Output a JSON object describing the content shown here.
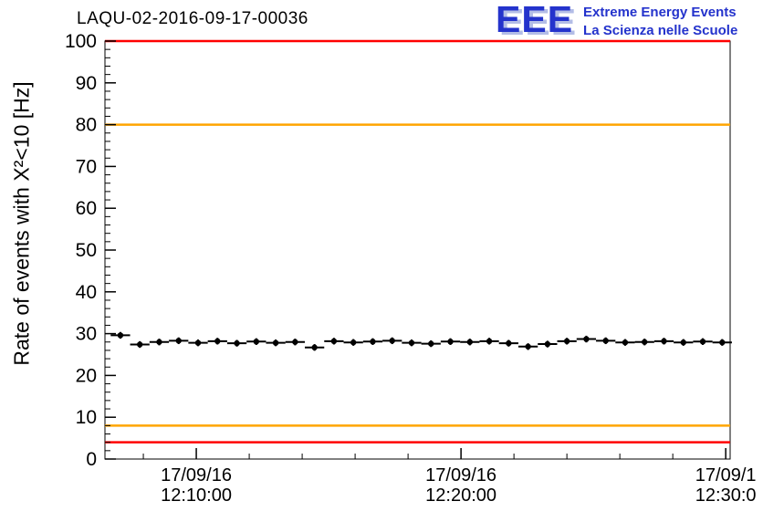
{
  "logo": {
    "text": "EEE",
    "line1": "Extreme Energy Events",
    "line2": "La Scienza nelle Scuole",
    "color": "#2433cc"
  },
  "chart_data": {
    "type": "scatter",
    "title": "LAQU-02-2016-09-17-00036",
    "ylabel": "Rate of events with X²<10 [Hz]",
    "xlabel": "",
    "ylim": [
      0,
      100
    ],
    "xlim": [
      0,
      1417
    ],
    "grid": false,
    "legend": false,
    "yticks": [
      0,
      10,
      20,
      30,
      40,
      50,
      60,
      70,
      80,
      90,
      100
    ],
    "xticks": [
      {
        "t": 207,
        "line1": "17/09/16",
        "line2": "12:10:00"
      },
      {
        "t": 807,
        "line1": "17/09/16",
        "line2": "12:20:00"
      },
      {
        "t": 1407,
        "line1": "17/09/1",
        "line2": "12:30:0"
      }
    ],
    "reference_lines": [
      {
        "y": 100,
        "color": "#ff0000"
      },
      {
        "y": 80,
        "color": "#ffa500"
      },
      {
        "y": 8,
        "color": "#ffa500"
      },
      {
        "y": 4,
        "color": "#ff0000"
      }
    ],
    "marker_color": "#000000",
    "points": {
      "x": [
        35,
        79,
        123,
        167,
        211,
        255,
        299,
        343,
        387,
        431,
        475,
        519,
        563,
        607,
        651,
        695,
        739,
        783,
        827,
        871,
        915,
        959,
        1003,
        1047,
        1091,
        1135,
        1179,
        1223,
        1267,
        1311,
        1355,
        1399
      ],
      "y": [
        29.6,
        27.4,
        28.0,
        28.3,
        27.8,
        28.2,
        27.7,
        28.1,
        27.8,
        28.0,
        26.7,
        28.2,
        27.9,
        28.1,
        28.3,
        27.8,
        27.6,
        28.1,
        28.0,
        28.2,
        27.7,
        26.9,
        27.5,
        28.2,
        28.7,
        28.3,
        27.9,
        28.0,
        28.2,
        27.9,
        28.1,
        27.9
      ],
      "xerr": 22,
      "yerr": 0.8
    }
  }
}
